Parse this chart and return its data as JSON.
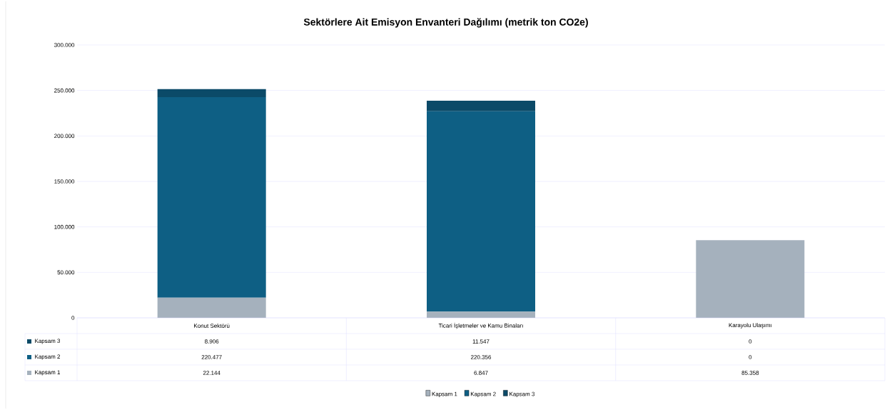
{
  "chart_data": {
    "type": "bar",
    "title": "Sektörlere Ait Emisyon Envanteri Dağılımı (metrik ton CO2e)",
    "categories": [
      "Konut Sektörü",
      "Ticari İşletmeler ve Kamu Binaları",
      "Karayolu Ulaşımı"
    ],
    "stacked": true,
    "series": [
      {
        "name": "Kapsam 1",
        "color": "#a5b1bd",
        "values": [
          22144,
          6847,
          85358
        ],
        "value_labels": [
          "22.144",
          "6.847",
          "85.358"
        ]
      },
      {
        "name": "Kapsam 2",
        "color": "#0e5f84",
        "values": [
          220477,
          220356,
          0
        ],
        "value_labels": [
          "220.477",
          "220.356",
          "0"
        ]
      },
      {
        "name": "Kapsam 3",
        "color": "#0b4a68",
        "values": [
          8906,
          11547,
          0
        ],
        "value_labels": [
          "8.906",
          "11.547",
          "0"
        ]
      }
    ],
    "ylim": [
      0,
      300000
    ],
    "yticks": [
      {
        "value": 0,
        "label": "0"
      },
      {
        "value": 50000,
        "label": "50.000"
      },
      {
        "value": 100000,
        "label": "100.000"
      },
      {
        "value": 150000,
        "label": "150.000"
      },
      {
        "value": 200000,
        "label": "200.000"
      },
      {
        "value": 250000,
        "label": "250.000"
      },
      {
        "value": 300000,
        "label": "300.000"
      }
    ],
    "grid": "y",
    "legend": "bottom"
  }
}
